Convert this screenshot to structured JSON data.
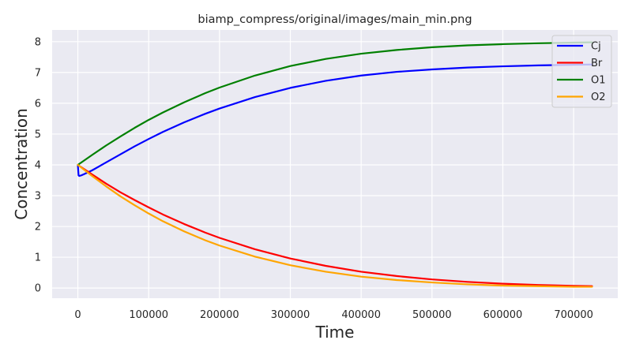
{
  "chart_data": {
    "type": "line",
    "title": "biamp_compress/original/images/main_min.png",
    "xlabel": "Time",
    "ylabel": "Concentration",
    "xlim": [
      -36300,
      762300
    ],
    "ylim": [
      -0.33,
      8.38
    ],
    "xticks": [
      0,
      100000,
      200000,
      300000,
      400000,
      500000,
      600000,
      700000
    ],
    "xtick_labels": [
      "0",
      "100000",
      "200000",
      "300000",
      "400000",
      "500000",
      "600000",
      "700000"
    ],
    "yticks": [
      0,
      1,
      2,
      3,
      4,
      5,
      6,
      7,
      8
    ],
    "ytick_labels": [
      "0",
      "1",
      "2",
      "3",
      "4",
      "5",
      "6",
      "7",
      "8"
    ],
    "grid": true,
    "legend_position": "top-right",
    "series": [
      {
        "name": "Cj",
        "color": "#0000ff",
        "x": [
          0,
          1000,
          2000,
          5000,
          10000,
          20000,
          40000,
          60000,
          80000,
          100000,
          120000,
          150000,
          180000,
          200000,
          250000,
          300000,
          350000,
          400000,
          450000,
          500000,
          550000,
          600000,
          650000,
          700000,
          726000
        ],
        "y": [
          4.0,
          3.66,
          3.64,
          3.66,
          3.71,
          3.82,
          4.08,
          4.34,
          4.6,
          4.84,
          5.07,
          5.38,
          5.66,
          5.83,
          6.2,
          6.5,
          6.73,
          6.9,
          7.02,
          7.1,
          7.16,
          7.2,
          7.23,
          7.25,
          7.26
        ]
      },
      {
        "name": "Br",
        "color": "#ff0000",
        "x": [
          0,
          20000,
          40000,
          60000,
          80000,
          100000,
          120000,
          150000,
          180000,
          200000,
          250000,
          300000,
          350000,
          400000,
          450000,
          500000,
          550000,
          600000,
          650000,
          700000,
          726000
        ],
        "y": [
          4.0,
          3.69,
          3.39,
          3.11,
          2.86,
          2.62,
          2.39,
          2.08,
          1.8,
          1.63,
          1.26,
          0.96,
          0.72,
          0.53,
          0.39,
          0.28,
          0.2,
          0.14,
          0.1,
          0.07,
          0.06
        ]
      },
      {
        "name": "O1",
        "color": "#008000",
        "x": [
          0,
          20000,
          40000,
          60000,
          80000,
          100000,
          120000,
          150000,
          180000,
          200000,
          250000,
          300000,
          350000,
          400000,
          450000,
          500000,
          550000,
          600000,
          650000,
          700000,
          726000
        ],
        "y": [
          4.0,
          4.32,
          4.63,
          4.92,
          5.2,
          5.46,
          5.7,
          6.03,
          6.33,
          6.51,
          6.9,
          7.21,
          7.44,
          7.61,
          7.73,
          7.82,
          7.88,
          7.92,
          7.95,
          7.97,
          7.98
        ]
      },
      {
        "name": "O2",
        "color": "#ffa500",
        "x": [
          0,
          20000,
          40000,
          60000,
          80000,
          100000,
          120000,
          150000,
          180000,
          200000,
          250000,
          300000,
          350000,
          400000,
          450000,
          500000,
          550000,
          600000,
          650000,
          700000,
          726000
        ],
        "y": [
          4.0,
          3.64,
          3.3,
          2.98,
          2.69,
          2.42,
          2.17,
          1.84,
          1.55,
          1.38,
          1.02,
          0.74,
          0.53,
          0.37,
          0.26,
          0.18,
          0.12,
          0.08,
          0.06,
          0.04,
          0.04
        ]
      }
    ]
  }
}
